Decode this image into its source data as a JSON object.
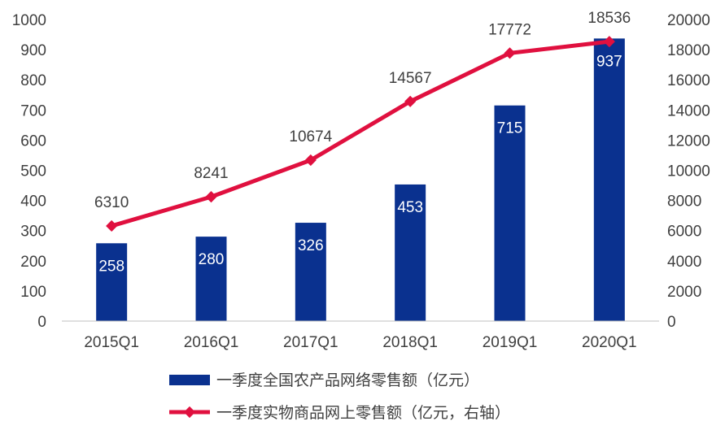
{
  "chart_data": {
    "type": "bar+line",
    "categories": [
      "2015Q1",
      "2016Q1",
      "2017Q1",
      "2018Q1",
      "2019Q1",
      "2020Q1"
    ],
    "series": [
      {
        "name": "一季度全国农产品网络零售额（亿元）",
        "type": "bar",
        "axis": "left",
        "values": [
          258,
          280,
          326,
          453,
          715,
          937
        ],
        "color": "#0A318F"
      },
      {
        "name": "一季度实物商品网上零售额（亿元，右轴）",
        "type": "line",
        "axis": "right",
        "values": [
          6310,
          8241,
          10674,
          14567,
          17772,
          18536
        ],
        "color": "#E0103F"
      }
    ],
    "y_left": {
      "min": 0,
      "max": 1000,
      "step": 100
    },
    "y_right": {
      "min": 0,
      "max": 20000,
      "step": 2000
    },
    "grid": false,
    "legend_position": "bottom",
    "title": "",
    "xlabel": "",
    "ylabel": ""
  }
}
